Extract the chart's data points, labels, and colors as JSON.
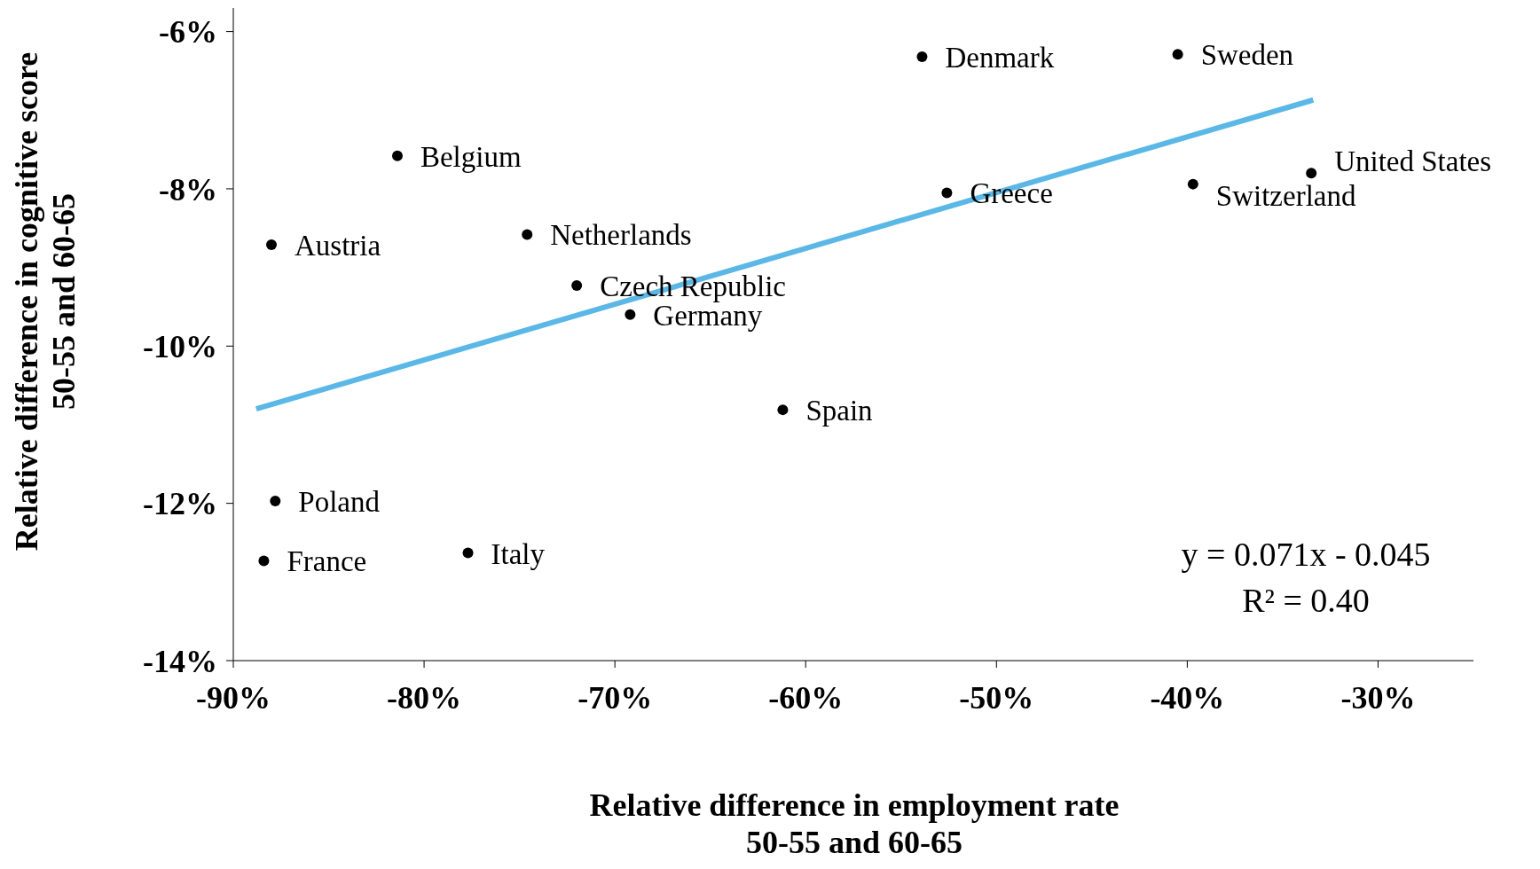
{
  "chart_data": {
    "type": "scatter",
    "xlabel": "Relative difference in employment rate\n50-55 and 60-65",
    "ylabel": "Relative difference in cognitive score\n50-55 and 60-65",
    "xlim": [
      -90,
      -25
    ],
    "ylim": [
      -14,
      -5.7
    ],
    "xticks": [
      {
        "value": -90,
        "label": "-90%"
      },
      {
        "value": -80,
        "label": "-80%"
      },
      {
        "value": -70,
        "label": "-70%"
      },
      {
        "value": -60,
        "label": "-60%"
      },
      {
        "value": -50,
        "label": "-50%"
      },
      {
        "value": -40,
        "label": "-40%"
      },
      {
        "value": -30,
        "label": "-30%"
      }
    ],
    "yticks": [
      {
        "value": -14,
        "label": "-14%"
      },
      {
        "value": -12,
        "label": "-12%"
      },
      {
        "value": -10,
        "label": "-10%"
      },
      {
        "value": -8,
        "label": "-8%"
      },
      {
        "value": -6,
        "label": "-6%"
      }
    ],
    "series": [
      {
        "color": "#000000",
        "marker": "circle",
        "x": [
          -53.9,
          -40.5,
          -81.4,
          -33.5,
          -39.7,
          -52.6,
          -88.0,
          -74.6,
          -72.0,
          -69.2,
          -61.2,
          -87.8,
          -88.4,
          -77.7
        ],
        "values": [
          -6.32,
          -6.29,
          -7.58,
          -7.8,
          -7.94,
          -8.05,
          -8.71,
          -8.58,
          -9.23,
          -9.6,
          -10.81,
          -11.97,
          -12.73,
          -12.63
        ],
        "value_labels": [
          "Denmark",
          "Sweden",
          "Belgium",
          "United States",
          "Switzerland",
          "Greece",
          "Austria",
          "Netherlands",
          "Czech Republic",
          "Germany",
          "Spain",
          "Poland",
          "France",
          "Italy"
        ]
      },
      {
        "type": "line",
        "color": "#5bb8e6",
        "marker": "none",
        "x": [
          -88.8,
          -33.4
        ],
        "values": [
          -10.8,
          -6.87
        ]
      }
    ],
    "annotations": [
      "y = 0.071x - 0.045",
      "R² = 0.40"
    ]
  }
}
